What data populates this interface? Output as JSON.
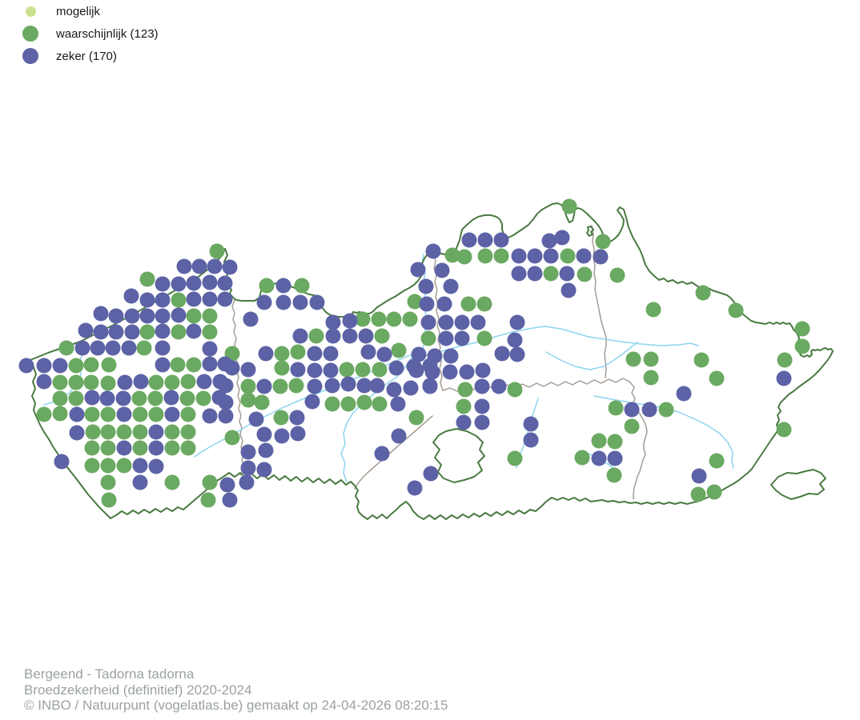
{
  "legend": {
    "items": [
      {
        "label": "mogelijk",
        "color": "#cbe18e",
        "diameter": 13
      },
      {
        "label": "waarschijnlijk (123)",
        "color": "#6aa961",
        "diameter": 20
      },
      {
        "label": "zeker (170)",
        "color": "#5c62a5",
        "diameter": 20
      }
    ]
  },
  "footer": {
    "lines": [
      "Bergeend - Tadorna tadorna",
      "Broedzekerheid (definitief) 2020-2024",
      "© INBO / Natuurpunt (vogelatlas.be) gemaakt op 24-04-2026 08:20:15"
    ]
  },
  "map_colors": {
    "region_border": "#4a7a42",
    "province_border": "#a69c94",
    "river": "#8ed4ee"
  },
  "chart_data": {
    "type": "scatter",
    "title": "Bergeend - Tadorna tadorna",
    "subtitle": "Broedzekerheid (definitief) 2020-2024",
    "legend_position": "top-left",
    "dot_radius": 9.5,
    "units": "screen pixels on Flanders map",
    "series": [
      {
        "name": "mogelijk",
        "count": 0,
        "color": "#cbe18e",
        "points": []
      },
      {
        "name": "waarschijnlijk",
        "count": 123,
        "color": "#6aa961",
        "points": [
          [
            271,
            314
          ],
          [
            184,
            349
          ],
          [
            223,
            375
          ],
          [
            242,
            395
          ],
          [
            262,
            395
          ],
          [
            184,
            415
          ],
          [
            223,
            415
          ],
          [
            262,
            415
          ],
          [
            83,
            435
          ],
          [
            180,
            435
          ],
          [
            95,
            457
          ],
          [
            114,
            456
          ],
          [
            136,
            456
          ],
          [
            222,
            456
          ],
          [
            242,
            456
          ],
          [
            75,
            478
          ],
          [
            95,
            478
          ],
          [
            114,
            478
          ],
          [
            135,
            479
          ],
          [
            195,
            478
          ],
          [
            215,
            478
          ],
          [
            235,
            477
          ],
          [
            75,
            498
          ],
          [
            95,
            498
          ],
          [
            174,
            498
          ],
          [
            194,
            498
          ],
          [
            234,
            498
          ],
          [
            254,
            498
          ],
          [
            55,
            518
          ],
          [
            75,
            517
          ],
          [
            115,
            518
          ],
          [
            135,
            518
          ],
          [
            175,
            518
          ],
          [
            195,
            518
          ],
          [
            235,
            518
          ],
          [
            116,
            540
          ],
          [
            135,
            540
          ],
          [
            155,
            540
          ],
          [
            175,
            540
          ],
          [
            215,
            540
          ],
          [
            235,
            540
          ],
          [
            115,
            560
          ],
          [
            135,
            560
          ],
          [
            175,
            560
          ],
          [
            215,
            560
          ],
          [
            235,
            560
          ],
          [
            115,
            582
          ],
          [
            135,
            582
          ],
          [
            155,
            582
          ],
          [
            135,
            603
          ],
          [
            215,
            603
          ],
          [
            136,
            625
          ],
          [
            262,
            603
          ],
          [
            260,
            625
          ],
          [
            333,
            357
          ],
          [
            377,
            357
          ],
          [
            395,
            420
          ],
          [
            453,
            399
          ],
          [
            473,
            399
          ],
          [
            492,
            399
          ],
          [
            512,
            399
          ],
          [
            477,
            420
          ],
          [
            290,
            442
          ],
          [
            352,
            442
          ],
          [
            372,
            440
          ],
          [
            498,
            438
          ],
          [
            352,
            460
          ],
          [
            433,
            462
          ],
          [
            453,
            462
          ],
          [
            474,
            462
          ],
          [
            310,
            483
          ],
          [
            350,
            483
          ],
          [
            370,
            482
          ],
          [
            310,
            500
          ],
          [
            327,
            503
          ],
          [
            415,
            505
          ],
          [
            435,
            505
          ],
          [
            455,
            503
          ],
          [
            474,
            505
          ],
          [
            351,
            522
          ],
          [
            520,
            522
          ],
          [
            290,
            547
          ],
          [
            711,
            258
          ],
          [
            753,
            302
          ],
          [
            565,
            319
          ],
          [
            580,
            321
          ],
          [
            606,
            320
          ],
          [
            626,
            320
          ],
          [
            709,
            320
          ],
          [
            688,
            342
          ],
          [
            730,
            343
          ],
          [
            771,
            344
          ],
          [
            518,
            377
          ],
          [
            585,
            380
          ],
          [
            605,
            380
          ],
          [
            535,
            423
          ],
          [
            605,
            423
          ],
          [
            581,
            487
          ],
          [
            643,
            487
          ],
          [
            579,
            508
          ],
          [
            643,
            573
          ],
          [
            727,
            572
          ],
          [
            878,
            366
          ],
          [
            816,
            387
          ],
          [
            919,
            388
          ],
          [
            1002,
            411
          ],
          [
            1002,
            433
          ],
          [
            791,
            449
          ],
          [
            813,
            449
          ],
          [
            876,
            450
          ],
          [
            980,
            450
          ],
          [
            813,
            472
          ],
          [
            895,
            473
          ],
          [
            769,
            510
          ],
          [
            832,
            512
          ],
          [
            789,
            533
          ],
          [
            979,
            537
          ],
          [
            748,
            551
          ],
          [
            768,
            552
          ],
          [
            895,
            576
          ],
          [
            767,
            594
          ],
          [
            872,
            618
          ],
          [
            892,
            615
          ]
        ]
      },
      {
        "name": "zeker",
        "count": 170,
        "color": "#5c62a5",
        "points": [
          [
            230,
            333
          ],
          [
            249,
            333
          ],
          [
            268,
            333
          ],
          [
            287,
            334
          ],
          [
            203,
            355
          ],
          [
            223,
            355
          ],
          [
            242,
            354
          ],
          [
            262,
            353
          ],
          [
            281,
            354
          ],
          [
            164,
            370
          ],
          [
            184,
            375
          ],
          [
            203,
            375
          ],
          [
            242,
            374
          ],
          [
            262,
            374
          ],
          [
            281,
            374
          ],
          [
            126,
            392
          ],
          [
            145,
            395
          ],
          [
            165,
            395
          ],
          [
            184,
            395
          ],
          [
            203,
            395
          ],
          [
            223,
            394
          ],
          [
            107,
            413
          ],
          [
            126,
            415
          ],
          [
            145,
            415
          ],
          [
            165,
            415
          ],
          [
            203,
            414
          ],
          [
            242,
            414
          ],
          [
            103,
            435
          ],
          [
            122,
            435
          ],
          [
            141,
            435
          ],
          [
            161,
            435
          ],
          [
            203,
            435
          ],
          [
            262,
            436
          ],
          [
            33,
            457
          ],
          [
            55,
            457
          ],
          [
            75,
            457
          ],
          [
            203,
            456
          ],
          [
            262,
            455
          ],
          [
            281,
            455
          ],
          [
            55,
            477
          ],
          [
            156,
            478
          ],
          [
            176,
            477
          ],
          [
            255,
            477
          ],
          [
            275,
            477
          ],
          [
            115,
            497
          ],
          [
            134,
            498
          ],
          [
            154,
            498
          ],
          [
            214,
            497
          ],
          [
            274,
            497
          ],
          [
            96,
            518
          ],
          [
            155,
            518
          ],
          [
            215,
            518
          ],
          [
            262,
            520
          ],
          [
            282,
            520
          ],
          [
            96,
            541
          ],
          [
            195,
            540
          ],
          [
            155,
            560
          ],
          [
            195,
            560
          ],
          [
            77,
            577
          ],
          [
            175,
            582
          ],
          [
            195,
            583
          ],
          [
            175,
            603
          ],
          [
            284,
            606
          ],
          [
            308,
            603
          ],
          [
            287,
            625
          ],
          [
            354,
            357
          ],
          [
            330,
            378
          ],
          [
            354,
            378
          ],
          [
            375,
            378
          ],
          [
            396,
            378
          ],
          [
            313,
            399
          ],
          [
            375,
            420
          ],
          [
            416,
            420
          ],
          [
            416,
            403
          ],
          [
            437,
            401
          ],
          [
            437,
            420
          ],
          [
            457,
            420
          ],
          [
            332,
            442
          ],
          [
            393,
            442
          ],
          [
            413,
            442
          ],
          [
            460,
            440
          ],
          [
            480,
            443
          ],
          [
            290,
            460
          ],
          [
            310,
            462
          ],
          [
            372,
            462
          ],
          [
            393,
            463
          ],
          [
            413,
            463
          ],
          [
            495,
            460
          ],
          [
            517,
            458
          ],
          [
            537,
            457
          ],
          [
            282,
            482
          ],
          [
            330,
            483
          ],
          [
            393,
            483
          ],
          [
            415,
            482
          ],
          [
            435,
            480
          ],
          [
            455,
            482
          ],
          [
            471,
            482
          ],
          [
            492,
            487
          ],
          [
            513,
            485
          ],
          [
            537,
            482
          ],
          [
            282,
            503
          ],
          [
            390,
            502
          ],
          [
            497,
            505
          ],
          [
            320,
            524
          ],
          [
            371,
            522
          ],
          [
            330,
            543
          ],
          [
            352,
            545
          ],
          [
            372,
            542
          ],
          [
            498,
            545
          ],
          [
            310,
            565
          ],
          [
            332,
            563
          ],
          [
            477,
            567
          ],
          [
            310,
            585
          ],
          [
            330,
            587
          ],
          [
            518,
            610
          ],
          [
            586,
            300
          ],
          [
            606,
            300
          ],
          [
            626,
            300
          ],
          [
            686,
            301
          ],
          [
            702,
            297
          ],
          [
            541,
            314
          ],
          [
            648,
            320
          ],
          [
            668,
            320
          ],
          [
            688,
            320
          ],
          [
            729,
            320
          ],
          [
            750,
            321
          ],
          [
            522,
            337
          ],
          [
            552,
            338
          ],
          [
            648,
            342
          ],
          [
            668,
            342
          ],
          [
            708,
            342
          ],
          [
            532,
            358
          ],
          [
            563,
            358
          ],
          [
            710,
            363
          ],
          [
            533,
            380
          ],
          [
            555,
            380
          ],
          [
            535,
            403
          ],
          [
            557,
            403
          ],
          [
            577,
            403
          ],
          [
            597,
            403
          ],
          [
            646,
            403
          ],
          [
            557,
            423
          ],
          [
            577,
            423
          ],
          [
            643,
            425
          ],
          [
            523,
            443
          ],
          [
            543,
            445
          ],
          [
            563,
            445
          ],
          [
            627,
            442
          ],
          [
            646,
            443
          ],
          [
            520,
            463
          ],
          [
            540,
            465
          ],
          [
            562,
            465
          ],
          [
            583,
            465
          ],
          [
            603,
            463
          ],
          [
            537,
            483
          ],
          [
            602,
            483
          ],
          [
            623,
            483
          ],
          [
            602,
            508
          ],
          [
            579,
            528
          ],
          [
            602,
            528
          ],
          [
            663,
            530
          ],
          [
            663,
            550
          ],
          [
            748,
            573
          ],
          [
            768,
            573
          ],
          [
            538,
            592
          ],
          [
            979,
            473
          ],
          [
            854,
            492
          ],
          [
            789,
            512
          ],
          [
            811,
            512
          ],
          [
            873,
            595
          ]
        ]
      }
    ]
  }
}
